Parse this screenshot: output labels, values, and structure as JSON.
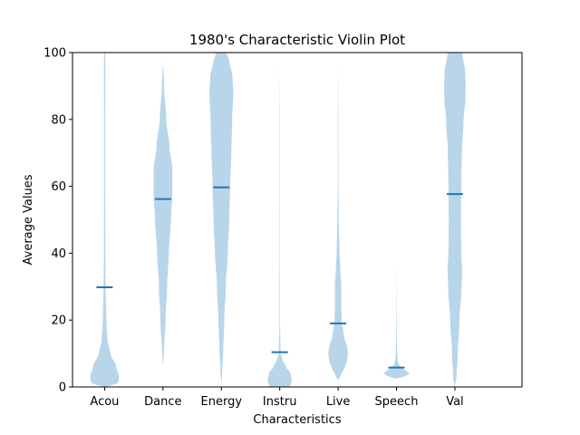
{
  "chart_data": {
    "type": "violin",
    "title": "1980's Characteristic Violin Plot",
    "xlabel": "Characteristics",
    "ylabel": "Average Values",
    "ylim": [
      0,
      100
    ],
    "yticks": [
      0,
      20,
      40,
      60,
      80,
      100
    ],
    "grid": false,
    "fill_color": "#b9d5ea",
    "mean_color": "#1f77b4",
    "categories": [
      "Acou",
      "Dance",
      "Energy",
      "Instru",
      "Live",
      "Speech",
      "Val"
    ],
    "means": [
      29.8,
      56.2,
      59.7,
      10.4,
      19.0,
      5.8,
      57.7
    ],
    "distributions": [
      {
        "name": "Acou",
        "profile": [
          [
            0,
            0.04
          ],
          [
            1,
            0.45
          ],
          [
            3,
            0.5
          ],
          [
            6,
            0.4
          ],
          [
            10,
            0.2
          ],
          [
            14,
            0.1
          ],
          [
            20,
            0.06
          ],
          [
            30,
            0.035
          ],
          [
            40,
            0.025
          ],
          [
            60,
            0.02
          ],
          [
            80,
            0.02
          ],
          [
            95,
            0.025
          ],
          [
            100,
            0.02
          ]
        ]
      },
      {
        "name": "Dance",
        "profile": [
          [
            6,
            0.0
          ],
          [
            10,
            0.03
          ],
          [
            20,
            0.09
          ],
          [
            30,
            0.14
          ],
          [
            40,
            0.2
          ],
          [
            50,
            0.27
          ],
          [
            58,
            0.32
          ],
          [
            65,
            0.32
          ],
          [
            72,
            0.22
          ],
          [
            80,
            0.11
          ],
          [
            90,
            0.04
          ],
          [
            98,
            0.0
          ]
        ]
      },
      {
        "name": "Energy",
        "profile": [
          [
            0,
            0.0
          ],
          [
            5,
            0.03
          ],
          [
            10,
            0.06
          ],
          [
            20,
            0.1
          ],
          [
            30,
            0.15
          ],
          [
            40,
            0.22
          ],
          [
            50,
            0.27
          ],
          [
            60,
            0.3
          ],
          [
            70,
            0.34
          ],
          [
            80,
            0.37
          ],
          [
            88,
            0.41
          ],
          [
            93,
            0.38
          ],
          [
            97,
            0.28
          ],
          [
            100,
            0.18
          ]
        ]
      },
      {
        "name": "Instru",
        "profile": [
          [
            0,
            0.34
          ],
          [
            2,
            0.42
          ],
          [
            4,
            0.38
          ],
          [
            6,
            0.22
          ],
          [
            8,
            0.1
          ],
          [
            10,
            0.03
          ],
          [
            20,
            0.01
          ],
          [
            40,
            0.008
          ],
          [
            60,
            0.007
          ],
          [
            80,
            0.006
          ],
          [
            100,
            0.0
          ]
        ]
      },
      {
        "name": "Live",
        "profile": [
          [
            2,
            0.0
          ],
          [
            4,
            0.12
          ],
          [
            6,
            0.24
          ],
          [
            8,
            0.31
          ],
          [
            10,
            0.34
          ],
          [
            12,
            0.31
          ],
          [
            15,
            0.2
          ],
          [
            20,
            0.12
          ],
          [
            25,
            0.11
          ],
          [
            30,
            0.11
          ],
          [
            35,
            0.08
          ],
          [
            40,
            0.05
          ],
          [
            50,
            0.025
          ],
          [
            60,
            0.012
          ],
          [
            80,
            0.008
          ],
          [
            100,
            0.0
          ]
        ]
      },
      {
        "name": "Speech",
        "profile": [
          [
            2.5,
            0.0
          ],
          [
            3,
            0.2
          ],
          [
            3.5,
            0.36
          ],
          [
            4,
            0.46
          ],
          [
            5,
            0.3
          ],
          [
            6,
            0.14
          ],
          [
            7,
            0.07
          ],
          [
            8,
            0.04
          ],
          [
            10,
            0.025
          ],
          [
            15,
            0.012
          ],
          [
            20,
            0.008
          ],
          [
            30,
            0.004
          ],
          [
            40,
            0.0
          ]
        ]
      },
      {
        "name": "Val",
        "profile": [
          [
            0,
            0.0
          ],
          [
            3,
            0.06
          ],
          [
            10,
            0.1
          ],
          [
            20,
            0.16
          ],
          [
            30,
            0.23
          ],
          [
            35,
            0.25
          ],
          [
            40,
            0.22
          ],
          [
            50,
            0.21
          ],
          [
            60,
            0.22
          ],
          [
            70,
            0.24
          ],
          [
            80,
            0.3
          ],
          [
            86,
            0.36
          ],
          [
            90,
            0.37
          ],
          [
            95,
            0.35
          ],
          [
            98,
            0.28
          ],
          [
            100,
            0.24
          ]
        ]
      }
    ]
  }
}
